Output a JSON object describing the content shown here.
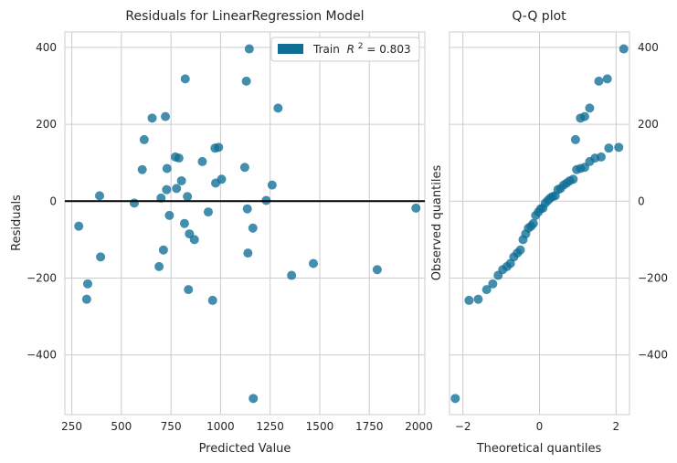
{
  "chart_data": [
    {
      "type": "scatter",
      "title": "Residuals for LinearRegression Model",
      "xlabel": "Predicted Value",
      "ylabel": "Residuals",
      "xlim": [
        215,
        2030
      ],
      "ylim": [
        -555,
        440
      ],
      "xticks": [
        250,
        500,
        750,
        1000,
        1250,
        1500,
        1750,
        2000
      ],
      "xtick_labels": [
        "250",
        "500",
        "750",
        "1000",
        "1250",
        "1500",
        "1750",
        "2000"
      ],
      "yticks": [
        -400,
        -200,
        0,
        200,
        400
      ],
      "ytick_labels": [
        "−400",
        "−200",
        "0",
        "200",
        "400"
      ],
      "grid": true,
      "legend": {
        "placement": "top-right",
        "label": "Train",
        "r2_text": "0.803"
      },
      "series": [
        {
          "name": "Train",
          "color": "#0f6e96",
          "points": [
            [
              285,
              -65
            ],
            [
              330,
              -215
            ],
            [
              325,
              -255
            ],
            [
              390,
              14
            ],
            [
              395,
              -145
            ],
            [
              565,
              -5
            ],
            [
              605,
              82
            ],
            [
              615,
              160
            ],
            [
              655,
              216
            ],
            [
              690,
              -170
            ],
            [
              700,
              8
            ],
            [
              712,
              -127
            ],
            [
              722,
              220
            ],
            [
              728,
              30
            ],
            [
              730,
              85
            ],
            [
              742,
              -37
            ],
            [
              772,
              115
            ],
            [
              778,
              33
            ],
            [
              790,
              112
            ],
            [
              803,
              53
            ],
            [
              818,
              -58
            ],
            [
              822,
              318
            ],
            [
              833,
              12
            ],
            [
              838,
              -230
            ],
            [
              843,
              -85
            ],
            [
              868,
              -100
            ],
            [
              908,
              103
            ],
            [
              938,
              -28
            ],
            [
              960,
              -258
            ],
            [
              972,
              138
            ],
            [
              975,
              47
            ],
            [
              990,
              140
            ],
            [
              1005,
              57
            ],
            [
              1122,
              88
            ],
            [
              1130,
              312
            ],
            [
              1135,
              -20
            ],
            [
              1138,
              -135
            ],
            [
              1145,
              396
            ],
            [
              1163,
              -70
            ],
            [
              1165,
              -513
            ],
            [
              1230,
              2
            ],
            [
              1260,
              42
            ],
            [
              1290,
              242
            ],
            [
              1358,
              -193
            ],
            [
              1468,
              -162
            ],
            [
              1790,
              -178
            ],
            [
              1985,
              -18
            ]
          ]
        }
      ],
      "reference_line": {
        "y": 0,
        "color": "#000000"
      }
    },
    {
      "type": "scatter",
      "title": "Q-Q plot",
      "xlabel": "Theoretical quantiles",
      "ylabel": "Observed quantiles",
      "xlim": [
        -2.35,
        2.35
      ],
      "ylim": [
        -555,
        440
      ],
      "xticks": [
        -2,
        0,
        2
      ],
      "xtick_labels": [
        "−2",
        "0",
        "2"
      ],
      "yticks": [
        -400,
        -200,
        0,
        200,
        400
      ],
      "ytick_labels": [
        "−400",
        "−200",
        "0",
        "200",
        "400"
      ],
      "grid": true,
      "series": [
        {
          "name": "",
          "color": "#0f6e96",
          "points": [
            [
              -2.2,
              -513
            ],
            [
              -1.84,
              -258
            ],
            [
              -1.6,
              -255
            ],
            [
              -1.38,
              -230
            ],
            [
              -1.22,
              -215
            ],
            [
              -1.08,
              -193
            ],
            [
              -0.96,
              -178
            ],
            [
              -0.85,
              -170
            ],
            [
              -0.76,
              -162
            ],
            [
              -0.67,
              -145
            ],
            [
              -0.58,
              -135
            ],
            [
              -0.5,
              -127
            ],
            [
              -0.43,
              -100
            ],
            [
              -0.36,
              -85
            ],
            [
              -0.29,
              -70
            ],
            [
              -0.22,
              -65
            ],
            [
              -0.16,
              -58
            ],
            [
              -0.1,
              -37
            ],
            [
              -0.03,
              -28
            ],
            [
              0.03,
              -20
            ],
            [
              0.09,
              -18
            ],
            [
              0.15,
              -5
            ],
            [
              0.22,
              2
            ],
            [
              0.28,
              8
            ],
            [
              0.34,
              12
            ],
            [
              0.41,
              14
            ],
            [
              0.48,
              30
            ],
            [
              0.55,
              33
            ],
            [
              0.63,
              42
            ],
            [
              0.71,
              47
            ],
            [
              0.79,
              53
            ],
            [
              0.88,
              57
            ],
            [
              0.97,
              82
            ],
            [
              1.07,
              85
            ],
            [
              1.18,
              88
            ],
            [
              1.31,
              103
            ],
            [
              1.45,
              112
            ],
            [
              1.61,
              115
            ],
            [
              1.81,
              138
            ],
            [
              2.07,
              140
            ],
            [
              0.94,
              160
            ],
            [
              1.07,
              216
            ],
            [
              1.18,
              220
            ],
            [
              1.31,
              242
            ],
            [
              1.55,
              312
            ],
            [
              1.77,
              318
            ],
            [
              2.2,
              396
            ]
          ]
        }
      ]
    }
  ]
}
